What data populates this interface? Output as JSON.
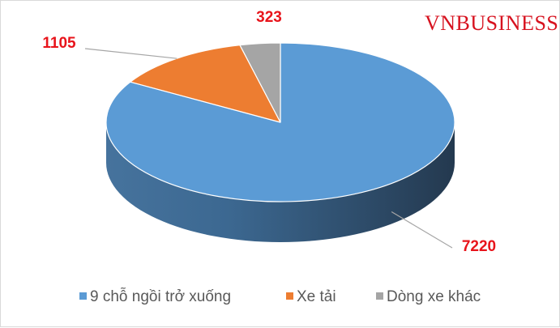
{
  "watermark": "VNBUSINESS",
  "chart_data": {
    "type": "pie",
    "style": "3d",
    "categories": [
      "9 chỗ ngồi trở xuống",
      "Xe tải",
      "Dòng xe khác"
    ],
    "values": [
      7220,
      1105,
      323
    ],
    "data_labels": [
      "7220",
      "1105",
      "323"
    ],
    "colors": [
      "#5b9bd5",
      "#ed7d31",
      "#a5a5a5"
    ],
    "legend_position": "bottom",
    "title": ""
  }
}
